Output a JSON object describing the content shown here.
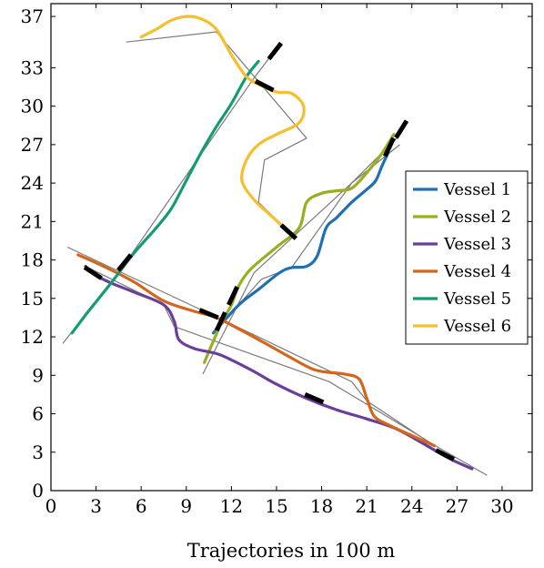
{
  "chart_data": {
    "type": "line",
    "title": "",
    "xlabel": "Trajectories in 100 m",
    "ylabel": "",
    "xlim": [
      0,
      32
    ],
    "ylim": [
      0,
      38
    ],
    "xticks": [
      "0",
      "3",
      "6",
      "9",
      "12",
      "15",
      "18",
      "21",
      "24",
      "27",
      "30"
    ],
    "yticks": [
      "0",
      "3",
      "6",
      "9",
      "12",
      "15",
      "18",
      "21",
      "24",
      "27",
      "30",
      "33",
      "37"
    ],
    "xtick_values": [
      0,
      3,
      6,
      9,
      12,
      15,
      18,
      21,
      24,
      27,
      30
    ],
    "ytick_values": [
      0,
      3,
      6,
      9,
      12,
      15,
      18,
      21,
      24,
      27,
      30,
      33,
      37
    ],
    "legend_position": "right",
    "grid": false,
    "series": [
      {
        "name": "Vessel 1",
        "color": "#1f6fb4",
        "points": [
          [
            10.8,
            12.3
          ],
          [
            12.5,
            14.5
          ],
          [
            13.8,
            15.7
          ],
          [
            15.2,
            17
          ],
          [
            16,
            17.4
          ],
          [
            17,
            17.5
          ],
          [
            17.7,
            18.3
          ],
          [
            18.3,
            20.5
          ],
          [
            19,
            21.3
          ],
          [
            20,
            22.5
          ],
          [
            21,
            23.5
          ],
          [
            21.6,
            24.2
          ],
          [
            22,
            25.3
          ],
          [
            22.4,
            26.3
          ]
        ],
        "reference": [
          [
            10.8,
            12.3
          ],
          [
            14,
            16.5
          ],
          [
            16,
            17.4
          ],
          [
            20,
            24
          ],
          [
            23.2,
            27
          ]
        ],
        "markers": [
          [
            22.5,
            26.8
          ]
        ]
      },
      {
        "name": "Vessel 2",
        "color": "#9aae1e",
        "points": [
          [
            10.2,
            10
          ],
          [
            11.3,
            13
          ],
          [
            12,
            14.5
          ],
          [
            12.5,
            16
          ],
          [
            13.3,
            17.3
          ],
          [
            15,
            19
          ],
          [
            16.5,
            20.5
          ],
          [
            17,
            22.5
          ],
          [
            18,
            23.2
          ],
          [
            19,
            23.4
          ],
          [
            20,
            23.6
          ],
          [
            21,
            24.8
          ],
          [
            22,
            26.3
          ],
          [
            22.8,
            27.8
          ]
        ],
        "reference": [
          [
            10.1,
            9.1
          ],
          [
            13.5,
            17
          ],
          [
            20,
            24
          ],
          [
            23,
            27.5
          ]
        ],
        "markers": [
          [
            12.1,
            15.2
          ],
          [
            11.3,
            13.2
          ],
          [
            23.3,
            28.2
          ]
        ]
      },
      {
        "name": "Vessel 3",
        "color": "#6a3f9c",
        "points": [
          [
            2.3,
            17.5
          ],
          [
            3,
            16.8
          ],
          [
            4,
            16.2
          ],
          [
            5.5,
            15.5
          ],
          [
            7.5,
            14.5
          ],
          [
            8.2,
            13.2
          ],
          [
            8.5,
            11.8
          ],
          [
            9.5,
            11.1
          ],
          [
            11,
            10.7
          ],
          [
            12,
            10.2
          ],
          [
            13.5,
            9.3
          ],
          [
            15,
            8.3
          ],
          [
            17,
            7.2
          ],
          [
            19,
            6.3
          ],
          [
            21,
            5.6
          ],
          [
            23,
            4.8
          ],
          [
            25,
            3.5
          ],
          [
            26.5,
            2.5
          ],
          [
            28,
            1.7
          ]
        ],
        "reference": [
          [
            2.3,
            17.5
          ],
          [
            7.5,
            14.5
          ],
          [
            8.2,
            12.8
          ],
          [
            18.5,
            8.5
          ],
          [
            26,
            3.2
          ],
          [
            29,
            1.2
          ]
        ],
        "markers": [
          [
            2.8,
            17
          ],
          [
            17.5,
            7.2
          ],
          [
            26.2,
            2.8
          ]
        ]
      },
      {
        "name": "Vessel 4",
        "color": "#d4661c",
        "points": [
          [
            1.8,
            18.4
          ],
          [
            3.5,
            17.5
          ],
          [
            5.5,
            16.3
          ],
          [
            7.5,
            14.8
          ],
          [
            9.5,
            14
          ],
          [
            11,
            13.5
          ],
          [
            13,
            12.3
          ],
          [
            15,
            11
          ],
          [
            17,
            9.7
          ],
          [
            18,
            9.3
          ],
          [
            19.5,
            9.1
          ],
          [
            20.5,
            8.7
          ],
          [
            21,
            7.2
          ],
          [
            21.5,
            5.8
          ],
          [
            22.5,
            5.1
          ],
          [
            24,
            4.3
          ],
          [
            25.5,
            3.5
          ]
        ],
        "reference": [
          [
            1.1,
            19
          ],
          [
            12,
            13
          ],
          [
            20,
            8.5
          ],
          [
            21,
            7
          ],
          [
            25.5,
            3.5
          ]
        ],
        "markers": [
          [
            10.5,
            13.8
          ]
        ]
      },
      {
        "name": "Vessel 5",
        "color": "#139b74",
        "points": [
          [
            1.4,
            12.3
          ],
          [
            2.5,
            14
          ],
          [
            4,
            16.2
          ],
          [
            5.5,
            18.5
          ],
          [
            7,
            20.5
          ],
          [
            8,
            22
          ],
          [
            9,
            24.2
          ],
          [
            10,
            26.4
          ],
          [
            11,
            28.4
          ],
          [
            12,
            30.2
          ],
          [
            13,
            32.3
          ],
          [
            13.8,
            33.5
          ]
        ],
        "reference": [
          [
            0.8,
            11.5
          ],
          [
            4.5,
            17
          ],
          [
            13.5,
            32.2
          ],
          [
            15,
            34.5
          ]
        ],
        "markers": [
          [
            4.9,
            17.8
          ],
          [
            14.9,
            34.3
          ]
        ]
      },
      {
        "name": "Vessel 6",
        "color": "#f5bf2c",
        "points": [
          [
            6,
            35.4
          ],
          [
            7,
            36
          ],
          [
            8,
            36.7
          ],
          [
            9,
            37
          ],
          [
            10,
            36.8
          ],
          [
            11,
            36
          ],
          [
            12,
            34
          ],
          [
            13,
            32.3
          ],
          [
            14,
            31.6
          ],
          [
            15,
            31.1
          ],
          [
            16,
            31
          ],
          [
            16.8,
            30
          ],
          [
            16.5,
            28.7
          ],
          [
            15,
            27.8
          ],
          [
            13.8,
            27
          ],
          [
            13,
            25.8
          ],
          [
            12.7,
            24.2
          ],
          [
            13.5,
            22.7
          ],
          [
            14.5,
            21.6
          ],
          [
            16,
            20
          ]
        ],
        "reference": [
          [
            5,
            35
          ],
          [
            11,
            35.8
          ],
          [
            17,
            27.5
          ],
          [
            14.2,
            25.8
          ],
          [
            13.8,
            22.5
          ],
          [
            16,
            20
          ]
        ],
        "markers": [
          [
            14.2,
            31.6
          ],
          [
            15.8,
            20.2
          ]
        ]
      }
    ]
  }
}
